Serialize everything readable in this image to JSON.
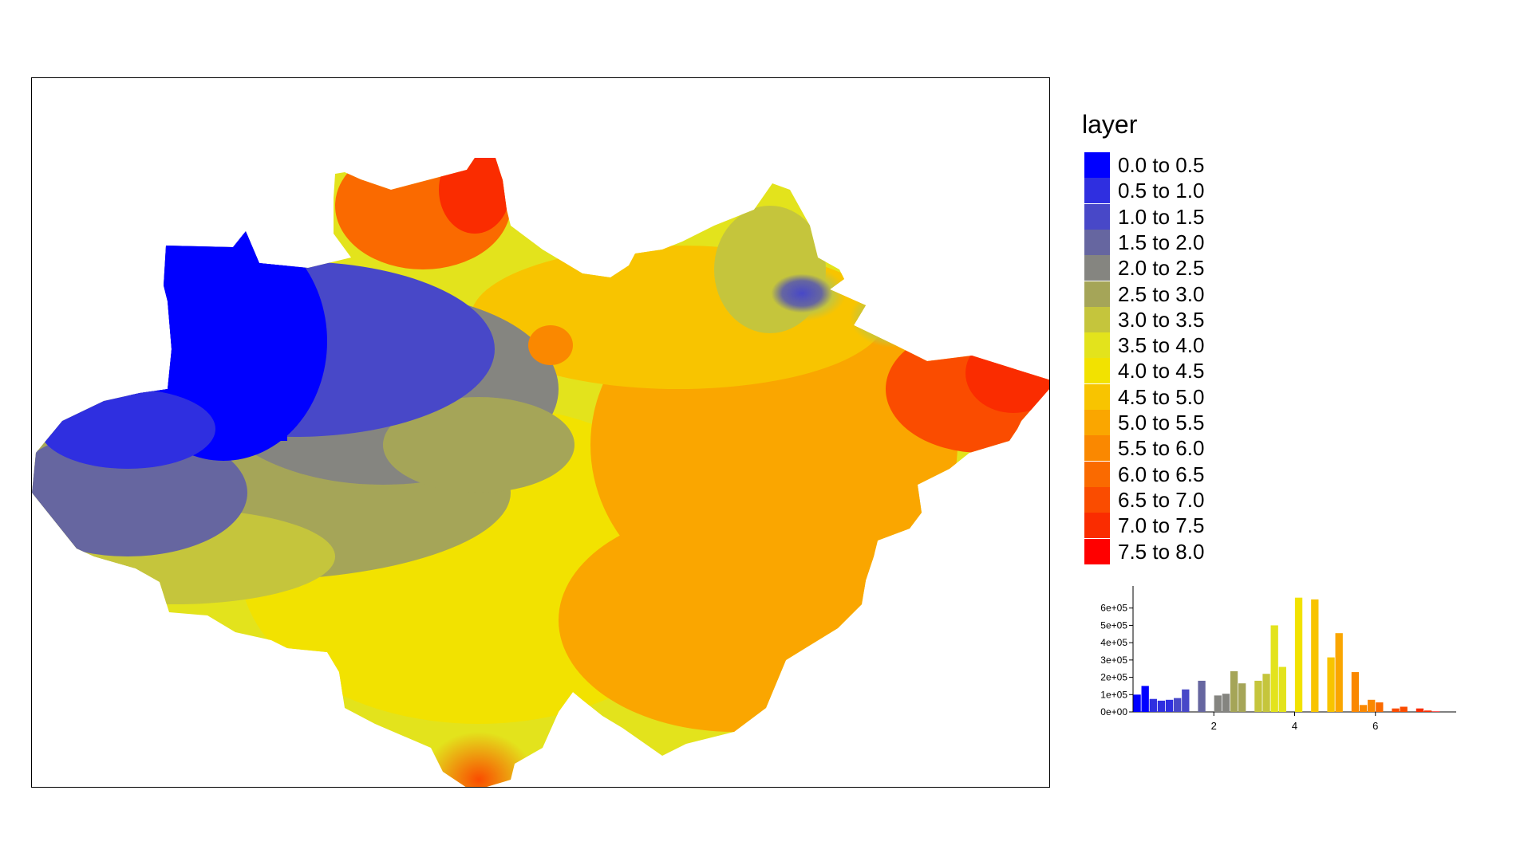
{
  "legend": {
    "title": "layer",
    "entries": [
      {
        "label": "0.0 to 0.5",
        "color": "#0000ff"
      },
      {
        "label": "0.5 to 1.0",
        "color": "#2f2fe0"
      },
      {
        "label": "1.0 to 1.5",
        "color": "#4848c8"
      },
      {
        "label": "1.5 to 2.0",
        "color": "#6666a0"
      },
      {
        "label": "2.0 to 2.5",
        "color": "#858580"
      },
      {
        "label": "2.5 to 3.0",
        "color": "#a5a558"
      },
      {
        "label": "3.0 to 3.5",
        "color": "#c5c53c"
      },
      {
        "label": "3.5 to 4.0",
        "color": "#e3e31c"
      },
      {
        "label": "4.0 to 4.5",
        "color": "#f2e200"
      },
      {
        "label": "4.5 to 5.0",
        "color": "#f8c400"
      },
      {
        "label": "5.0 to 5.5",
        "color": "#faa600"
      },
      {
        "label": "5.5 to 6.0",
        "color": "#fa8800"
      },
      {
        "label": "6.0 to 6.5",
        "color": "#fa6a00"
      },
      {
        "label": "6.5 to 7.0",
        "color": "#fa4c00"
      },
      {
        "label": "7.0 to 7.5",
        "color": "#fa2c00"
      },
      {
        "label": "7.5 to 8.0",
        "color": "#ff0000"
      }
    ]
  },
  "chart_data": {
    "type": "bar",
    "x": [
      0.1,
      0.3,
      0.5,
      0.7,
      0.9,
      1.1,
      1.3,
      1.7,
      2.1,
      2.3,
      2.5,
      2.7,
      3.1,
      3.3,
      3.5,
      3.7,
      3.9,
      4.1,
      4.3,
      4.5,
      4.7,
      4.9,
      5.1,
      5.3,
      5.5,
      5.7,
      5.9,
      6.1,
      6.3,
      6.5,
      6.7,
      6.9,
      7.1,
      7.3,
      7.5,
      7.7
    ],
    "values": [
      100000,
      150000,
      75000,
      65000,
      70000,
      80000,
      130000,
      180000,
      95000,
      105000,
      235000,
      165000,
      180000,
      220000,
      500000,
      260000,
      0,
      660000,
      0,
      650000,
      0,
      315000,
      455000,
      0,
      230000,
      40000,
      70000,
      55000,
      0,
      20000,
      30000,
      0,
      20000,
      8000,
      3000,
      0
    ],
    "yticks": [
      "0e+00",
      "1e+05",
      "2e+05",
      "3e+05",
      "4e+05",
      "5e+05",
      "6e+05"
    ],
    "xticks": [
      "2",
      "4",
      "6"
    ],
    "ylim": [
      0,
      700000
    ],
    "xlim": [
      0,
      8
    ]
  }
}
